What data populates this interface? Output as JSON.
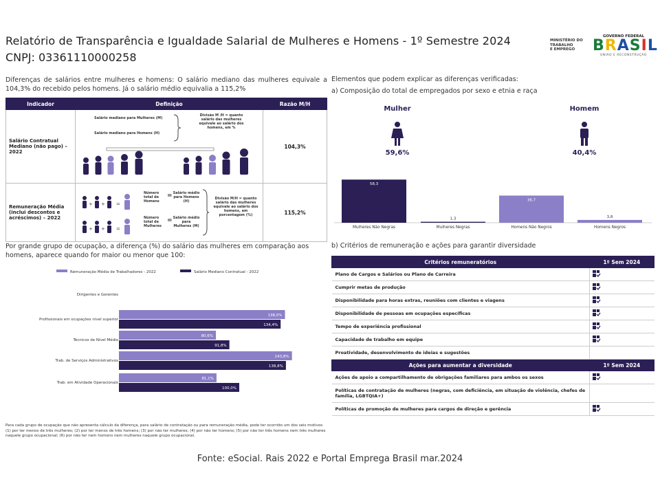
{
  "header": {
    "title": "Relatório de Transparência e Igualdade Salarial de Mulheres e Homens - 1º Semestre 2024",
    "cnpj": "CNPJ: 03361110000258",
    "ministry": [
      "MINISTÉRIO DO",
      "TRABALHO",
      "E EMPREGO"
    ],
    "gov_top": "GOVERNO FEDERAL",
    "gov_brand": [
      "B",
      "R",
      "A",
      "S",
      "I",
      "L"
    ],
    "gov_sub": "UNIÃO E RECONSTRUÇÃO"
  },
  "intro": "Diferenças de salários entre mulheres e homens: O salário mediano das mulheres equivale a 104,3% do recebido pelos homens. Já o salário médio equivalia a 115,2%",
  "indicator_table": {
    "headers": [
      "Indicador",
      "Definição",
      "Razão M/H"
    ],
    "rows": [
      {
        "name": "Salário Contratual Mediano (não pago) – 2022",
        "ratio": "104,3%",
        "def_top": "Salário mediano para Mulheres (M)",
        "def_bottom": "Salário mediano para Homens (H)",
        "def_note": "Divisão M /H = quanto salário das mulheres equivale ao salário dos homens, em %"
      },
      {
        "name": "Remuneração Média (inclui descontos e acréscimos) – 2022",
        "ratio": "115,2%",
        "lbl_total_h": "Número total de Homens",
        "lbl_avg_h": "Salário médio para Homens (H)",
        "lbl_total_m": "Número total de Mulheres",
        "lbl_avg_m": "Salário médio para Mulheres (M)",
        "def_note": "Divisão M/H = quanto salário das mulheres equivale ao salário dos homens, em porcentagem (%)"
      }
    ]
  },
  "occupation_text": "Por grande grupo de ocupação, a diferença (%) do salário das mulheres em comparação aos homens, aparece quando for maior ou menor que 100:",
  "footnote": "Para cada grupo de ocupação que não apresenta cálculo da diferença, para salário de contratação ou para remuneração média, pode ter ocorrido um dos seis motivos (1) por ter menos de três mulheres; (2) por ter menos de três homens; (3) por não ter mulheres; (4) por não ter homens; (5) por não ter três homens nem três mulheres naquele grupo ocupacional; (6) por não ter nem homens nem mulheres naquele grupo ocupacional.",
  "source": "Fonte: eSocial. Rais 2022 e Portal Emprega Brasil mar.2024",
  "elements_title": "Elementos que podem explicar as diferenças verificadas:",
  "composition": {
    "title": "a) Composição do total de empregados por sexo e etnia e raça",
    "women_label": "Mulher",
    "women_pct": "59,6%",
    "men_label": "Homem",
    "men_pct": "40,4%"
  },
  "criteria": {
    "title": "b) Critérios de remuneração e ações para garantir diversidade",
    "head1": "Critérios remuneratórios",
    "head1_col": "1º Sem 2024",
    "items1": [
      {
        "label": "Plano de Cargos e Salários ou Plano de Carreira",
        "mark": true
      },
      {
        "label": "Cumprir metas de produção",
        "mark": true
      },
      {
        "label": "Disponibilidade para horas extras, reuniões com clientes e viagens",
        "mark": true
      },
      {
        "label": "Disponibilidade de pessoas em ocupações específicas",
        "mark": true
      },
      {
        "label": "Tempo de experiência profissional",
        "mark": true
      },
      {
        "label": "Capacidade de trabalho em equipe",
        "mark": true
      },
      {
        "label": "Proatividade, desenvolvimento de ideias e sugestões",
        "mark": false
      }
    ],
    "head2": "Ações para aumentar a diversidade",
    "head2_col": "1º Sem 2024",
    "items2": [
      {
        "label": "Ações de apoio a compartilhamento de obrigações familiares para ambos os sexos",
        "mark": true
      },
      {
        "label": "Políticas de contratação de mulheres (negras, com deficiência, em situação de violência, chefes de família, LGBTQIA+)",
        "mark": false
      },
      {
        "label": "Políticas de promoção de mulheres para cargos de direção e gerência",
        "mark": true
      }
    ]
  },
  "colors": {
    "dark": "#2b1f55",
    "light": "#8b7fc7",
    "female": "#8b7fc7",
    "male": "#2b1f55"
  },
  "chart_data": [
    {
      "type": "bar",
      "orientation": "horizontal",
      "categories": [
        "Dirigentes e Gerentes",
        "Profissionais em ocupações nível superior",
        "Técnicos de Nível Médio",
        "Trab. de Serviços Administrativos",
        "Trab. em Atividade Operacionais"
      ],
      "series": [
        {
          "name": "Remuneração Média de Trabalhadores - 2022",
          "values": [
            null,
            138.0,
            80.6,
            143.8,
            81.1
          ],
          "labels": [
            "",
            "138,0%",
            "80,6%",
            "143,8%",
            "81,1%"
          ]
        },
        {
          "name": "Salário Mediano Contratual - 2022",
          "values": [
            null,
            134.4,
            91.8,
            138.8,
            100.0
          ],
          "labels": [
            "",
            "134,4%",
            "91,8%",
            "138,8%",
            "100,0%"
          ]
        }
      ],
      "legend": "top",
      "xlim": [
        0,
        160
      ]
    },
    {
      "type": "bar",
      "categories": [
        "Mulheres Não Negras",
        "Mulheres Negras",
        "Homens Não Negros",
        "Homens Negros"
      ],
      "values": [
        58.3,
        1.3,
        36.7,
        3.8
      ],
      "labels": [
        "58,3",
        "1,3",
        "36,7",
        "3,8"
      ],
      "ylim": [
        0,
        65
      ]
    }
  ]
}
